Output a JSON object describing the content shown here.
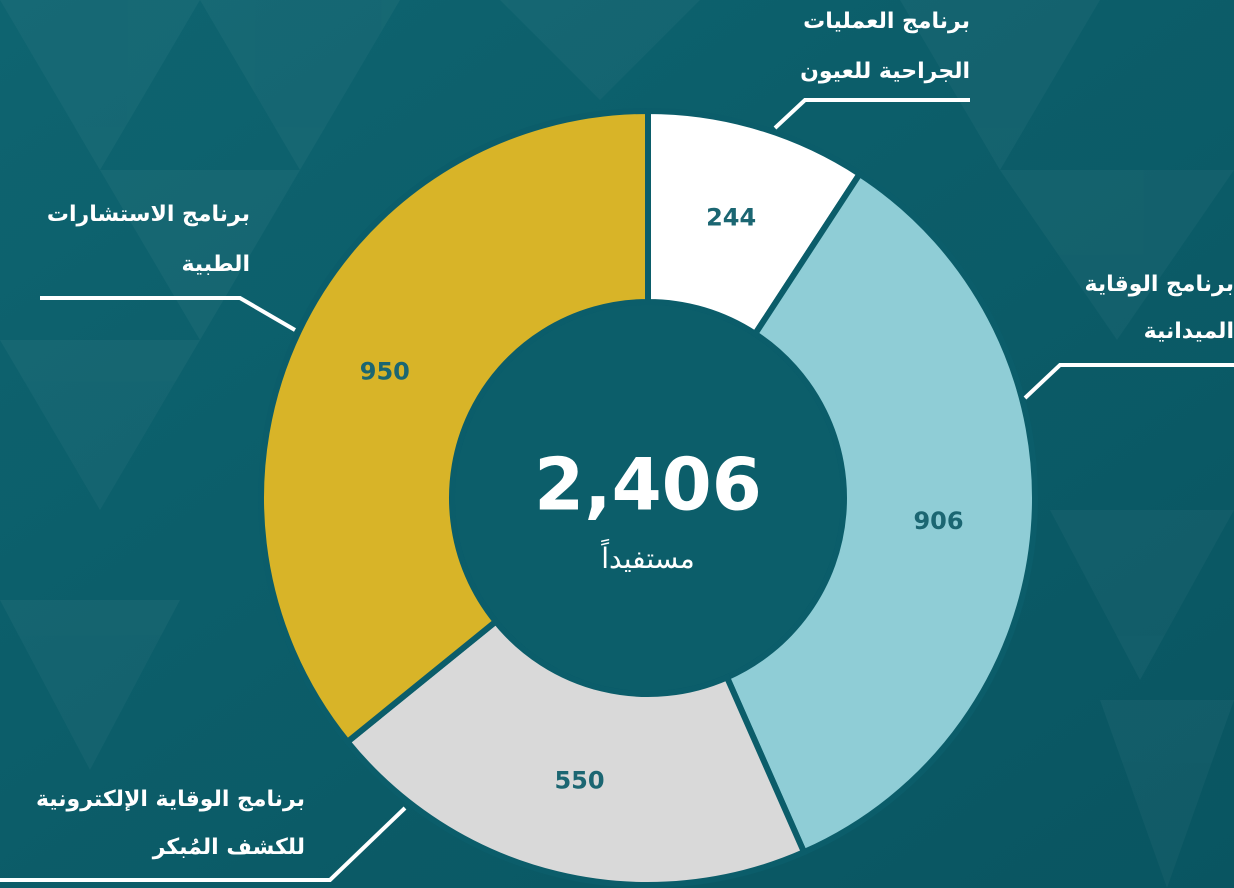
{
  "chart_data": {
    "type": "pie",
    "categories": [
      [
        "برنامج العمليات",
        "الجراحية للعيون"
      ],
      [
        "برنامج الوقاية",
        "الميدانية"
      ],
      [
        "برنامج الوقاية الإلكترونية",
        "للكشف المُبكر"
      ],
      [
        "برنامج الاستشارات",
        "الطبية"
      ]
    ],
    "values": [
      244,
      906,
      550,
      950
    ],
    "colors": [
      "#ffffff",
      "#8fcdd6",
      "#d9d9d9",
      "#d8b428"
    ],
    "center_value": "2,406",
    "center_label": "مستفيداً"
  }
}
